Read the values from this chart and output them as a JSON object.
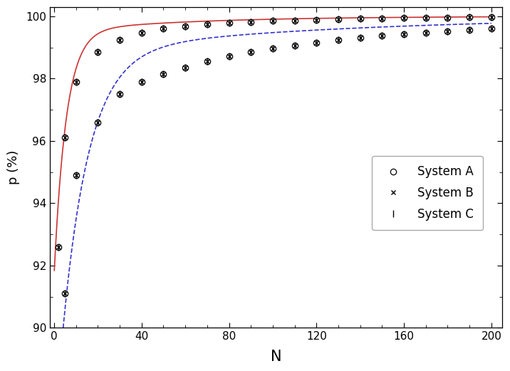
{
  "N_AB": [
    2,
    5,
    10,
    20,
    30,
    40,
    50,
    60,
    70,
    80,
    90,
    100,
    110,
    120,
    130,
    140,
    150,
    160,
    170,
    180,
    190,
    200
  ],
  "p_AB": [
    92.6,
    96.1,
    97.9,
    98.85,
    99.25,
    99.47,
    99.6,
    99.68,
    99.74,
    99.78,
    99.82,
    99.85,
    99.87,
    99.89,
    99.9,
    99.92,
    99.93,
    99.94,
    99.95,
    99.96,
    99.965,
    99.97
  ],
  "N_C": [
    5,
    10,
    20,
    30,
    40,
    50,
    60,
    70,
    80,
    90,
    100,
    110,
    120,
    130,
    140,
    150,
    160,
    170,
    180,
    190,
    200
  ],
  "p_C": [
    91.1,
    94.9,
    96.6,
    97.5,
    97.9,
    98.15,
    98.35,
    98.55,
    98.72,
    98.85,
    98.97,
    99.07,
    99.16,
    99.24,
    99.31,
    99.37,
    99.43,
    99.48,
    99.52,
    99.57,
    99.61
  ],
  "color_AB_line": "#cc3333",
  "color_C_line": "#3333cc",
  "linestyle_AB": "-",
  "linestyle_C": "--",
  "ylabel": "p (%)",
  "xlabel": "N",
  "ylim": [
    90.0,
    100.3
  ],
  "xlim": [
    -2,
    205
  ],
  "yticks": [
    90.0,
    92.0,
    94.0,
    96.0,
    98.0,
    100.0
  ],
  "xticks": [
    0,
    40,
    80,
    120,
    160,
    200
  ],
  "legend_labels": [
    "System A",
    "System B",
    "System C"
  ],
  "marker_size": 6,
  "capsize": 1.5,
  "yerr_small": 0.08
}
